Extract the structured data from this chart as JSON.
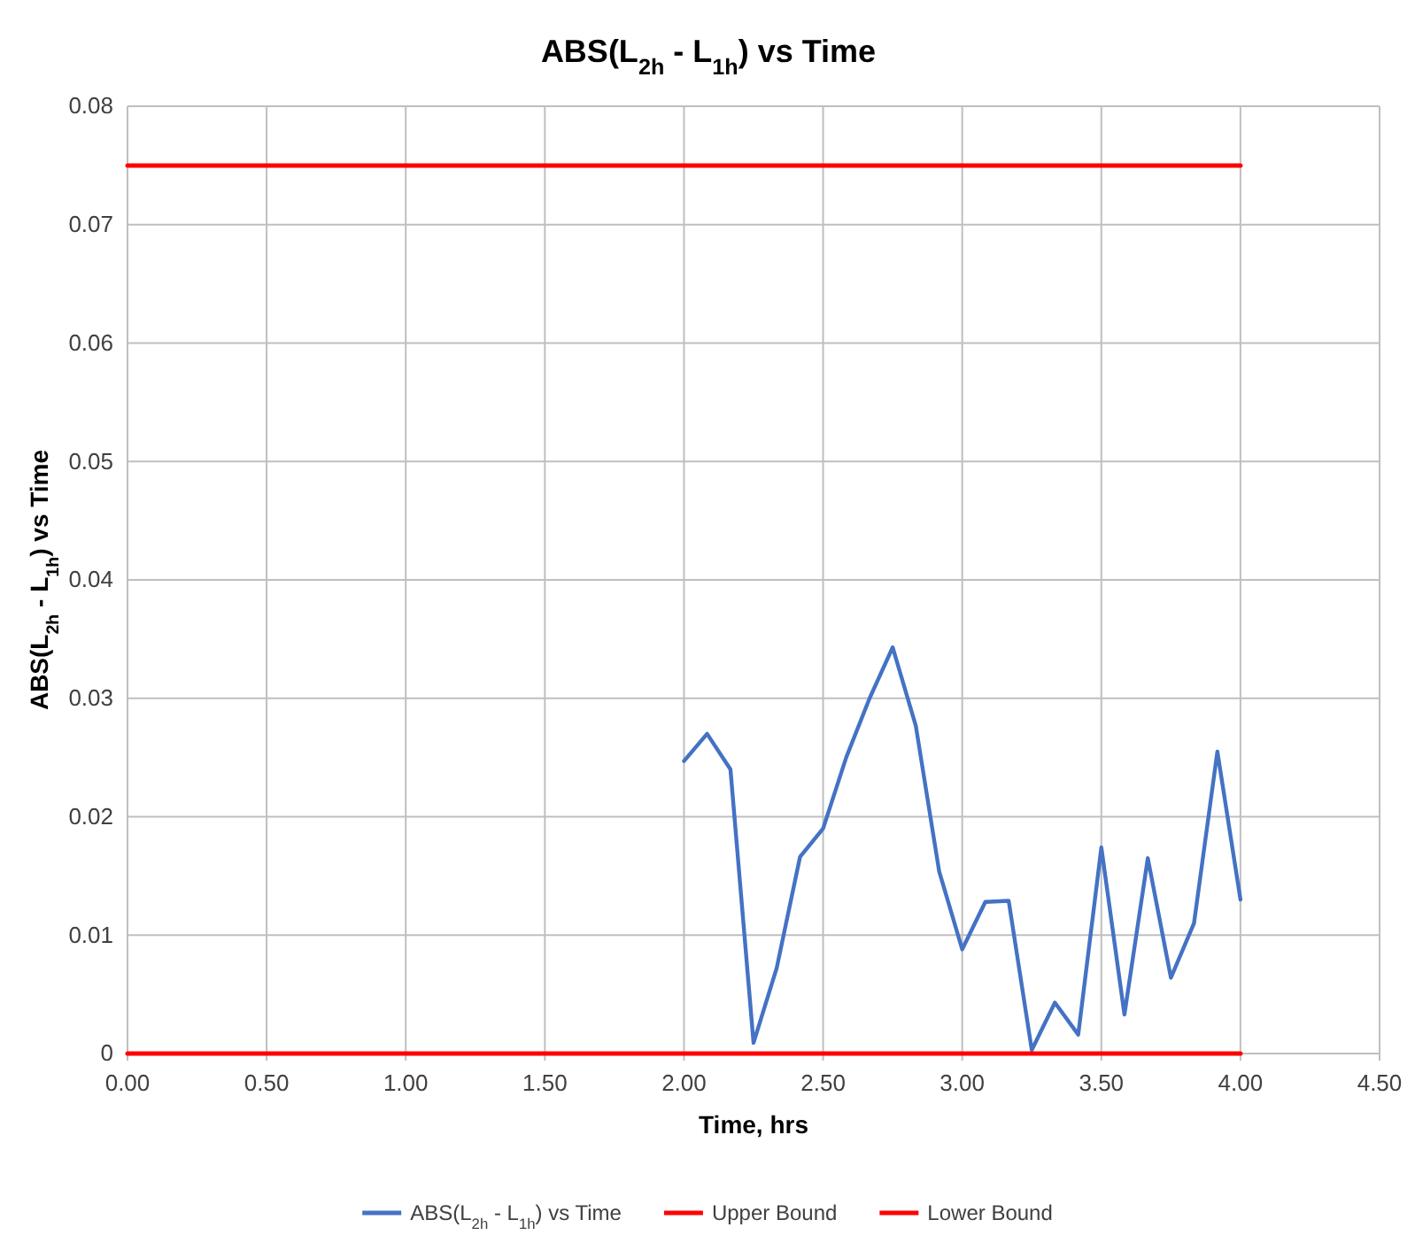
{
  "chart_data": {
    "type": "line",
    "title": "ABS(L$_{2h}$ - L$_{1h}$) vs Time",
    "xlabel": "Time, hrs",
    "ylabel": "ABS(L$_{2h}$ - L$_{1h}$) vs Time",
    "xlim": [
      0,
      4.5
    ],
    "ylim": [
      0,
      0.08
    ],
    "xticks": [
      {
        "value": 0,
        "label": "0.00"
      },
      {
        "value": 0.5,
        "label": "0.50"
      },
      {
        "value": 1,
        "label": "1.00"
      },
      {
        "value": 1.5,
        "label": "1.50"
      },
      {
        "value": 2,
        "label": "2.00"
      },
      {
        "value": 2.5,
        "label": "2.50"
      },
      {
        "value": 3,
        "label": "3.00"
      },
      {
        "value": 3.5,
        "label": "3.50"
      },
      {
        "value": 4,
        "label": "4.00"
      },
      {
        "value": 4.5,
        "label": "4.50"
      }
    ],
    "yticks": [
      0,
      0.01,
      0.02,
      0.03,
      0.04,
      0.05,
      0.06,
      0.07,
      0.08
    ],
    "grid": true,
    "legend": "bottom",
    "marker": "none",
    "line_style": "solid",
    "series": [
      {
        "name": "ABS(L$_{2h}$ - L$_{1h}$) vs Time",
        "color": "#4472c4",
        "x": [
          2,
          2.083,
          2.167,
          2.25,
          2.333,
          2.417,
          2.5,
          2.583,
          2.667,
          2.75,
          2.833,
          2.917,
          3,
          3.083,
          3.167,
          3.25,
          3.333,
          3.417,
          3.5,
          3.583,
          3.667,
          3.75,
          3.833,
          3.917,
          4
        ],
        "values": [
          0.0247,
          0.027,
          0.024,
          0.0009,
          0.0072,
          0.0166,
          0.019,
          0.025,
          0.03,
          0.0343,
          0.0277,
          0.0154,
          0.0088,
          0.0128,
          0.0129,
          0.0003,
          0.0043,
          0.0016,
          0.0174,
          0.0033,
          0.0165,
          0.0064,
          0.011,
          0.0255,
          0.013
        ]
      },
      {
        "name": "Upper Bound",
        "color": "#ff0000",
        "x": [
          0,
          4
        ],
        "values": [
          0.075,
          0.075
        ]
      },
      {
        "name": "Lower Bound",
        "color": "#ff0000",
        "x": [
          0,
          4
        ],
        "values": [
          0,
          0
        ]
      }
    ]
  }
}
